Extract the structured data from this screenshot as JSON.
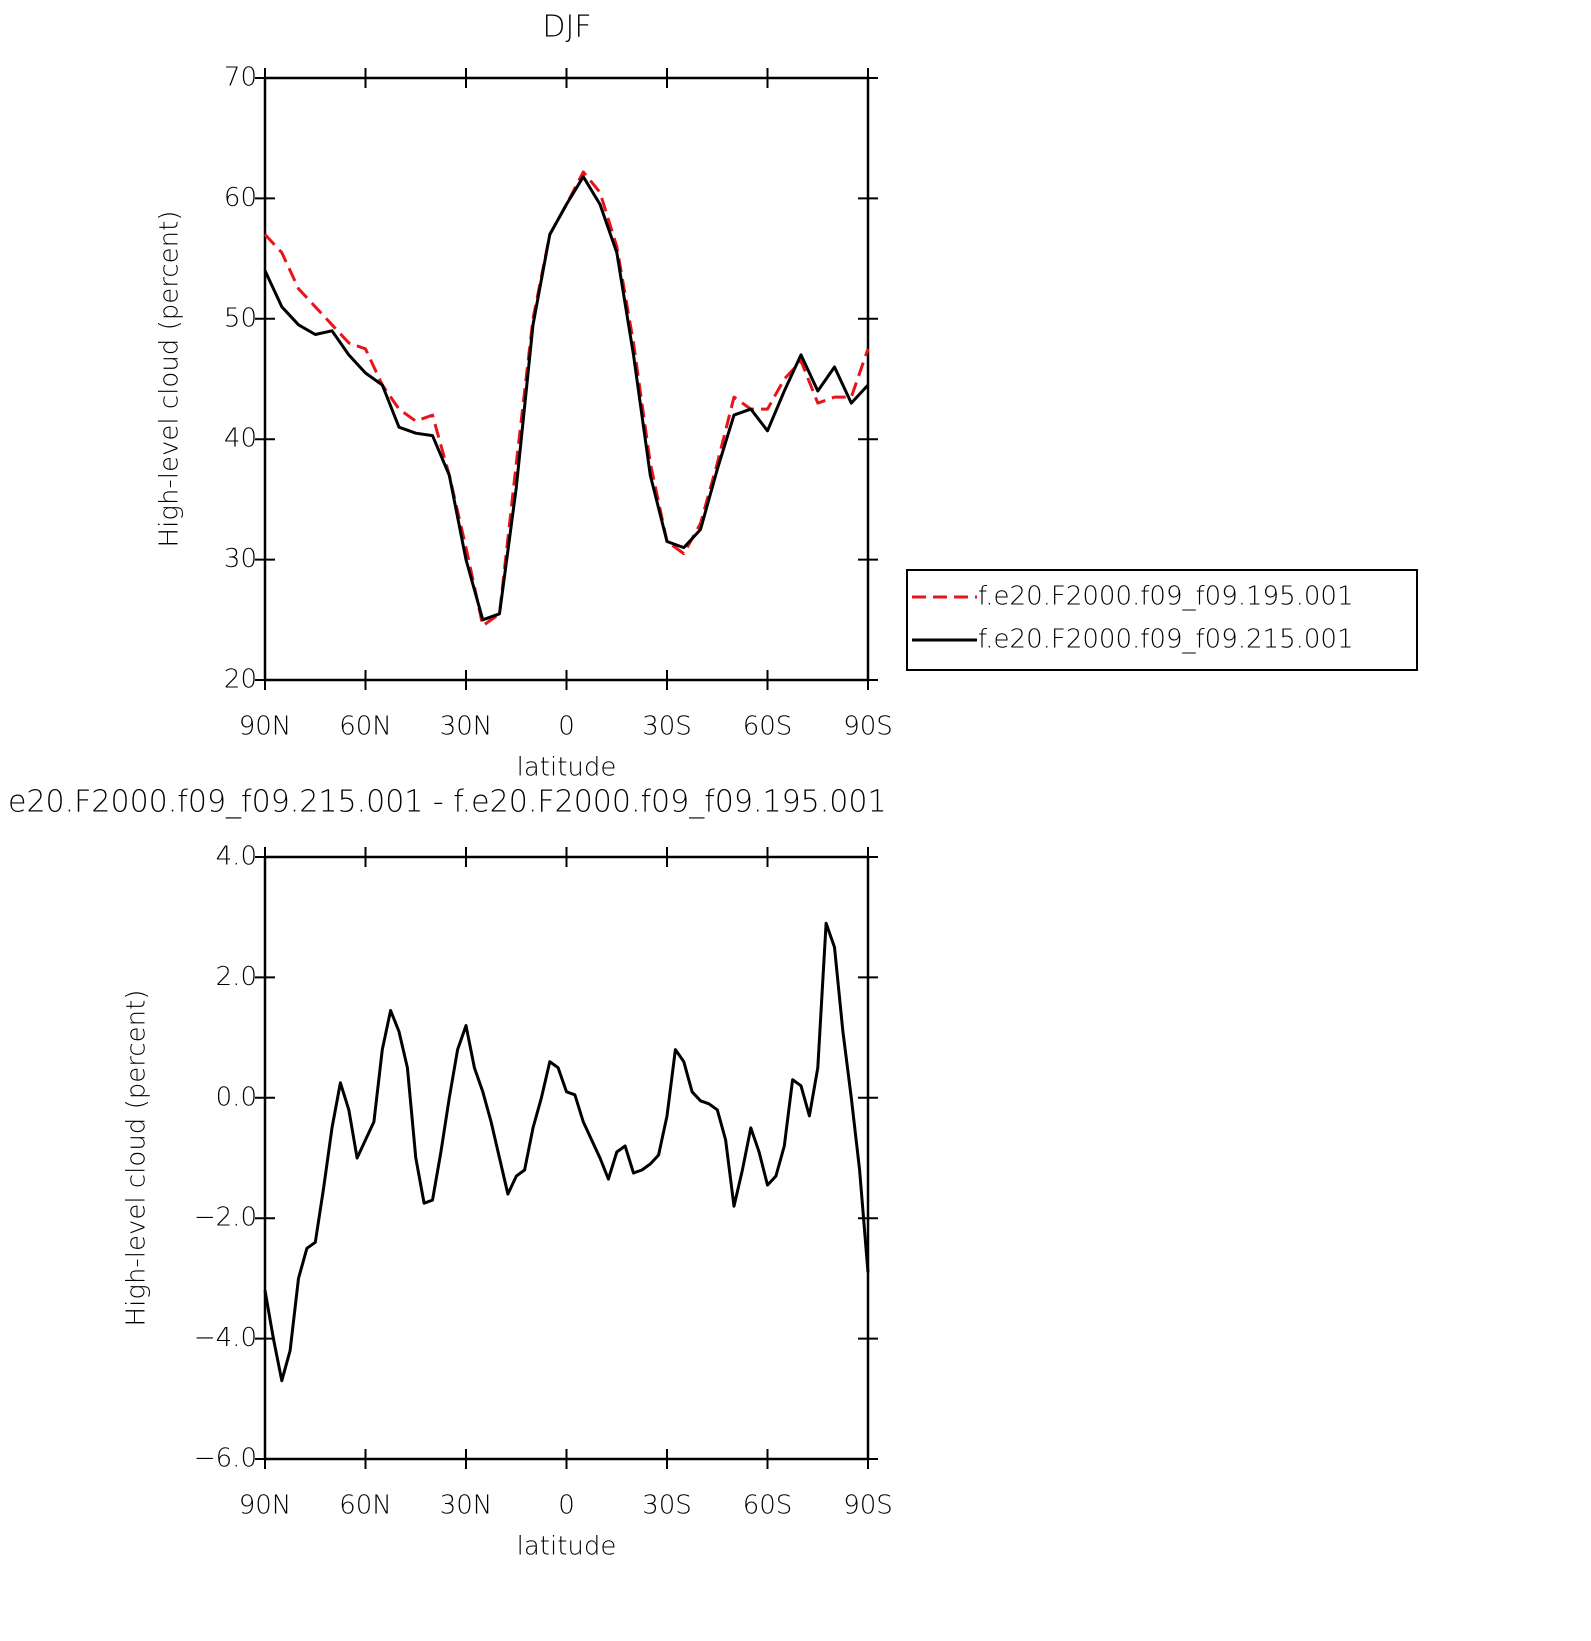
{
  "chart_data": [
    {
      "type": "line",
      "title": "DJF",
      "xlabel": "latitude",
      "ylabel": "High-level cloud (percent)",
      "x": [
        90,
        85,
        80,
        75,
        70,
        65,
        60,
        55,
        50,
        45,
        40,
        35,
        30,
        25,
        20,
        15,
        10,
        5,
        0,
        -5,
        -10,
        -15,
        -20,
        -25,
        -30,
        -35,
        -40,
        -45,
        -50,
        -55,
        -60,
        -65,
        -70,
        -75,
        -80,
        -85,
        -90
      ],
      "series": [
        {
          "name": "f.e20.F2000.f09_f09.195.001",
          "color": "#e8141a",
          "linestyle": "dashed",
          "values": [
            57,
            55.5,
            52.5,
            51,
            49.5,
            48,
            47.5,
            44.5,
            42.5,
            41.5,
            42,
            37,
            31,
            24.5,
            25.5,
            38,
            50,
            57,
            59.5,
            62.2,
            60.5,
            56,
            48,
            38,
            31.5,
            30.5,
            33,
            38,
            43.5,
            42.5,
            42.5,
            45,
            46.5,
            43,
            43.5,
            43.5,
            47.5
          ]
        },
        {
          "name": "f.e20.F2000.f09_f09.215.001",
          "color": "#000000",
          "linestyle": "solid",
          "values": [
            54,
            51,
            49.5,
            48.7,
            49,
            47,
            45.5,
            44.5,
            41,
            40.5,
            40.3,
            37,
            30,
            25,
            25.5,
            36,
            49.5,
            57,
            59.5,
            61.8,
            59.5,
            55.5,
            47,
            37,
            31.5,
            31,
            32.5,
            37.5,
            42,
            42.5,
            40.7,
            44,
            47,
            44,
            46,
            43,
            44.5
          ]
        }
      ],
      "xlim": [
        90,
        -90
      ],
      "xticks": [
        {
          "value": 90,
          "label": "90N"
        },
        {
          "value": 60,
          "label": "60N"
        },
        {
          "value": 30,
          "label": "30N"
        },
        0,
        {
          "value": -30,
          "label": "30S"
        },
        {
          "value": -60,
          "label": "60S"
        },
        {
          "value": -90,
          "label": "90S"
        }
      ],
      "ylim": [
        20,
        70
      ],
      "yticks": [
        20,
        30,
        40,
        50,
        60,
        70
      ],
      "legend": "right"
    },
    {
      "type": "line",
      "title": "e20.F2000.f09_f09.215.001 - f.e20.F2000.f09_f09.195.001",
      "xlabel": "latitude",
      "ylabel": "High-level cloud (percent)",
      "x": [
        90,
        87.5,
        85,
        82.5,
        80,
        77.5,
        75,
        72.5,
        70,
        67.5,
        65,
        62.5,
        60,
        57.5,
        55,
        52.5,
        50,
        47.5,
        45,
        42.5,
        40,
        37.5,
        35,
        32.5,
        30,
        27.5,
        25,
        22.5,
        20,
        17.5,
        15,
        12.5,
        10,
        7.5,
        5,
        2.5,
        0,
        -2.5,
        -5,
        -7.5,
        -10,
        -12.5,
        -15,
        -17.5,
        -20,
        -22.5,
        -25,
        -27.5,
        -30,
        -32.5,
        -35,
        -37.5,
        -40,
        -42.5,
        -45,
        -47.5,
        -50,
        -52.5,
        -55,
        -57.5,
        -60,
        -62.5,
        -65,
        -67.5,
        -70,
        -72.5,
        -75,
        -77.5,
        -80,
        -82.5,
        -85,
        -87.5,
        -90
      ],
      "series": [
        {
          "color": "#000000",
          "linestyle": "solid",
          "values": [
            -3.2,
            -4.0,
            -4.7,
            -4.2,
            -3.0,
            -2.5,
            -2.4,
            -1.5,
            -0.5,
            0.25,
            -0.2,
            -1.0,
            -0.7,
            -0.4,
            0.8,
            1.45,
            1.1,
            0.5,
            -1.0,
            -1.75,
            -1.7,
            -0.9,
            0.0,
            0.8,
            1.2,
            0.5,
            0.1,
            -0.4,
            -1.0,
            -1.6,
            -1.3,
            -1.2,
            -0.5,
            0.0,
            0.6,
            0.5,
            0.1,
            0.05,
            -0.4,
            -0.7,
            -1.0,
            -1.35,
            -0.9,
            -0.8,
            -1.25,
            -1.2,
            -1.1,
            -0.95,
            -0.3,
            0.8,
            0.6,
            0.1,
            -0.05,
            -0.1,
            -0.2,
            -0.7,
            -1.8,
            -1.2,
            -0.5,
            -0.9,
            -1.45,
            -1.3,
            -0.8,
            0.3,
            0.2,
            -0.3,
            0.5,
            2.9,
            2.5,
            1.1,
            0.0,
            -1.2,
            -2.9
          ]
        }
      ],
      "xlim": [
        90,
        -90
      ],
      "xticks": [
        {
          "value": 90,
          "label": "90N"
        },
        {
          "value": 60,
          "label": "60N"
        },
        {
          "value": 30,
          "label": "30N"
        },
        0,
        {
          "value": -30,
          "label": "30S"
        },
        {
          "value": -60,
          "label": "60S"
        },
        {
          "value": -90,
          "label": "90S"
        }
      ],
      "ylim": [
        -6,
        4
      ],
      "yticks": [
        {
          "value": -6,
          "label": "−6.0"
        },
        {
          "value": -4,
          "label": "−4.0"
        },
        {
          "value": -2,
          "label": "−2.0"
        },
        {
          "value": 0,
          "label": "0.0"
        },
        {
          "value": 2,
          "label": "2.0"
        },
        {
          "value": 4,
          "label": "4.0"
        }
      ]
    }
  ]
}
